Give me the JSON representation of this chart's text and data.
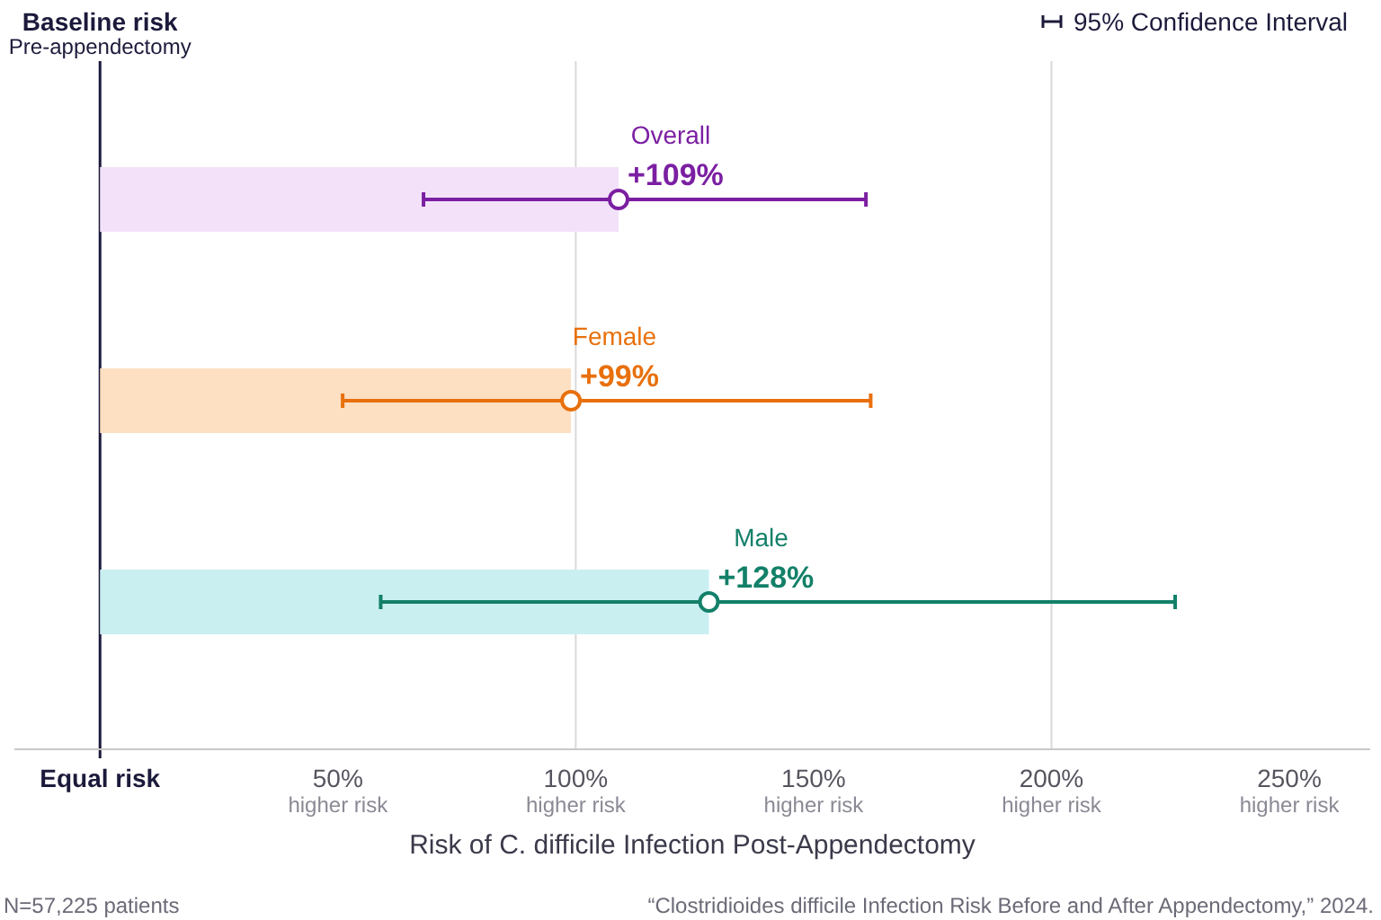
{
  "chart_data": {
    "type": "bar",
    "orientation": "horizontal",
    "xlabel": "Risk of C. difficile Infection Post-Appendectomy",
    "categories": [
      "Overall",
      "Female",
      "Male"
    ],
    "series": [
      {
        "colors": [
          "#f3e1fa",
          "#fddfc2",
          "#c9eff1"
        ],
        "values": [
          109,
          99,
          128
        ]
      },
      {
        "type": "scatter",
        "colors": [
          "#7b1fa2",
          "#e8700c",
          "#138069"
        ],
        "values": [
          109,
          99,
          128
        ],
        "errors": [
          [
            68,
            161
          ],
          [
            51,
            162
          ],
          [
            59,
            226
          ]
        ],
        "value_labels": [
          "+109%",
          "+99%",
          "+128%"
        ]
      }
    ],
    "xlim": [
      -18,
      267
    ],
    "xticks": [
      {
        "value": 0,
        "label": "Equal risk"
      },
      {
        "value": 50,
        "label": "50%\nhigher risk"
      },
      {
        "value": 100,
        "label": "100%\nhigher risk"
      },
      {
        "value": 150,
        "label": "150%\nhigher risk"
      },
      {
        "value": 200,
        "label": "200%\nhigher risk"
      },
      {
        "value": 250,
        "label": "250%\nhigher risk"
      }
    ],
    "ref_lines": [
      {
        "axis": "x",
        "value": 0,
        "label": "Baseline risk\nPre-appendectomy",
        "color": "#1c1a3b"
      },
      {
        "axis": "x",
        "value": 100,
        "color": "#d9d9d9"
      },
      {
        "axis": "x",
        "value": 200,
        "color": "#d9d9d9"
      }
    ],
    "marker": "circle",
    "annotations": [
      "95% Confidence Interval",
      "N=57,225 patients",
      "“Clostridioides difficile Infection Risk Before and After Appendectomy,” 2024."
    ]
  }
}
